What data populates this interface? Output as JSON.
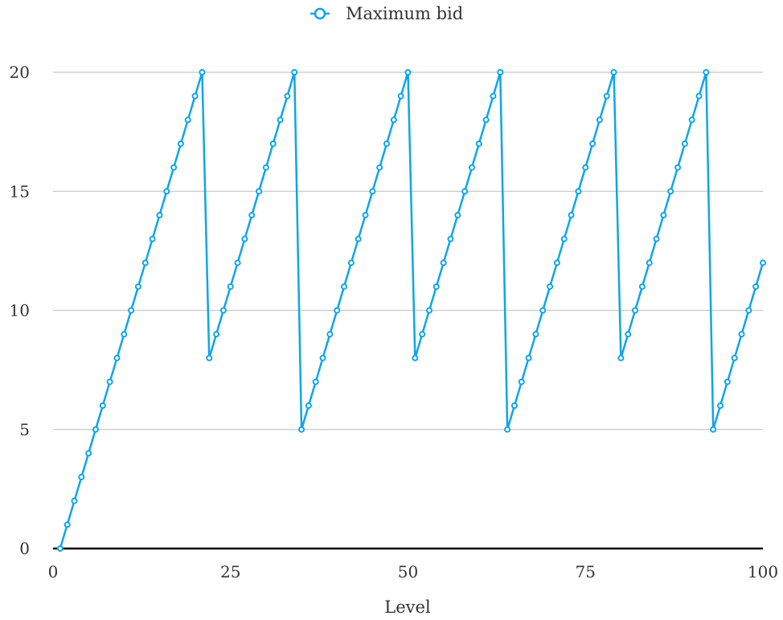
{
  "chart_data": {
    "type": "line",
    "title": "",
    "xlabel": "Level",
    "ylabel": "",
    "xlim": [
      0,
      100
    ],
    "ylim": [
      0,
      20
    ],
    "x_ticks": [
      0,
      25,
      50,
      75,
      100
    ],
    "y_ticks": [
      0,
      5,
      10,
      15,
      20
    ],
    "grid": "horizontal",
    "legend": "top-center",
    "series": [
      {
        "name": "Maximum bid",
        "color": "#0ea5e9",
        "marker": "open-circle",
        "x": [
          1,
          2,
          3,
          4,
          5,
          6,
          7,
          8,
          9,
          10,
          11,
          12,
          13,
          14,
          15,
          16,
          17,
          18,
          19,
          20,
          21,
          22,
          23,
          24,
          25,
          26,
          27,
          28,
          29,
          30,
          31,
          32,
          33,
          34,
          35,
          36,
          37,
          38,
          39,
          40,
          41,
          42,
          43,
          44,
          45,
          46,
          47,
          48,
          49,
          50,
          51,
          52,
          53,
          54,
          55,
          56,
          57,
          58,
          59,
          60,
          61,
          62,
          63,
          64,
          65,
          66,
          67,
          68,
          69,
          70,
          71,
          72,
          73,
          74,
          75,
          76,
          77,
          78,
          79,
          80,
          81,
          82,
          83,
          84,
          85,
          86,
          87,
          88,
          89,
          90,
          91,
          92,
          93,
          94,
          95,
          96,
          97,
          98,
          99,
          100
        ],
        "y": [
          0,
          1,
          2,
          3,
          4,
          5,
          6,
          7,
          8,
          9,
          10,
          11,
          12,
          13,
          14,
          15,
          16,
          17,
          18,
          19,
          20,
          8,
          9,
          10,
          11,
          12,
          13,
          14,
          15,
          16,
          17,
          18,
          19,
          20,
          5,
          6,
          7,
          8,
          9,
          10,
          11,
          12,
          13,
          14,
          15,
          16,
          17,
          18,
          19,
          20,
          8,
          9,
          10,
          11,
          12,
          13,
          14,
          15,
          16,
          17,
          18,
          19,
          20,
          5,
          6,
          7,
          8,
          9,
          10,
          11,
          12,
          13,
          14,
          15,
          16,
          17,
          18,
          19,
          20,
          8,
          9,
          10,
          11,
          12,
          13,
          14,
          15,
          16,
          17,
          18,
          19,
          20,
          5,
          6,
          7,
          8,
          9,
          10,
          11,
          12
        ]
      }
    ]
  }
}
